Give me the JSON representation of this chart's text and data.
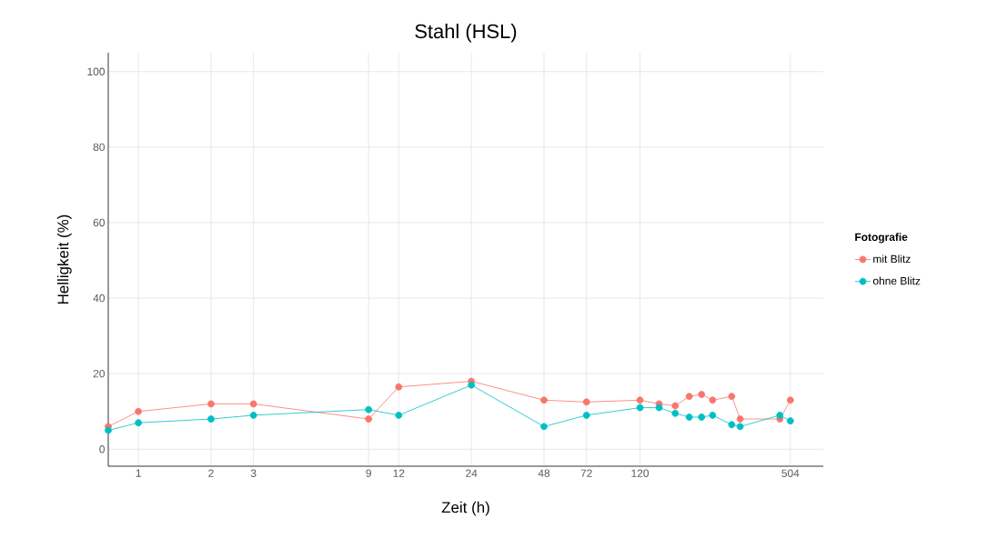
{
  "chart_data": {
    "type": "line",
    "title": "Stahl (HSL)",
    "xlabel": "Zeit (h)",
    "ylabel": "Helligkeit (%)",
    "legend_title": "Fotografie",
    "log": "x",
    "x": [
      0.75,
      1,
      2,
      3,
      9,
      12,
      24,
      48,
      72,
      120,
      144,
      168,
      192,
      216,
      240,
      288,
      312,
      456,
      504
    ],
    "series": [
      {
        "name": "mit Blitz",
        "color": "#f8766d",
        "values": [
          6,
          10,
          12,
          12,
          8,
          16.5,
          18,
          13,
          12.5,
          13,
          12,
          11.5,
          14,
          14.5,
          13,
          14,
          8,
          8,
          13
        ]
      },
      {
        "name": "ohne Blitz",
        "color": "#00bfc4",
        "values": [
          5,
          7,
          8,
          9,
          10.5,
          9,
          17,
          6,
          9,
          11,
          11,
          9.5,
          8.5,
          8.5,
          9,
          6.5,
          6,
          9,
          7.5
        ]
      }
    ],
    "xlim": [
      0.75,
      690
    ],
    "ylim": [
      -4.5,
      105
    ],
    "xticks": [
      1,
      2,
      3,
      9,
      12,
      24,
      48,
      72,
      120,
      504
    ],
    "yticks": [
      0,
      20,
      40,
      60,
      80,
      100
    ],
    "grid": true,
    "legend": "right",
    "marker": "circle",
    "line_style": "solid"
  }
}
